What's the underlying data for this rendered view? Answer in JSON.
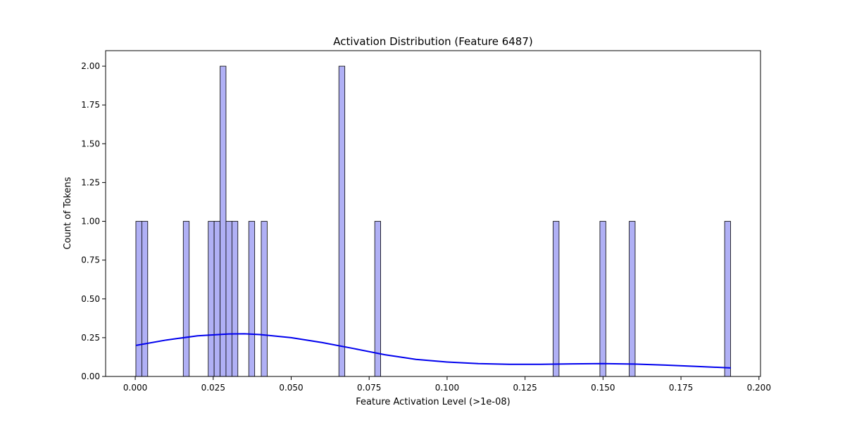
{
  "chart_data": {
    "type": "bar",
    "title": "Activation Distribution (Feature 6487)",
    "xlabel": "Feature Activation Level (>1e-08)",
    "ylabel": "Count of Tokens",
    "xlim": [
      -0.0095,
      0.2005
    ],
    "ylim": [
      0,
      2.1
    ],
    "bin_width": 0.0019,
    "xticks": [
      0.0,
      0.025,
      0.05,
      0.075,
      0.1,
      0.125,
      0.15,
      0.175,
      0.2
    ],
    "xtick_labels": [
      "0.000",
      "0.025",
      "0.050",
      "0.075",
      "0.100",
      "0.125",
      "0.150",
      "0.175",
      "0.200"
    ],
    "yticks": [
      0.0,
      0.25,
      0.5,
      0.75,
      1.0,
      1.25,
      1.5,
      1.75,
      2.0
    ],
    "ytick_labels": [
      "0.00",
      "0.25",
      "0.50",
      "0.75",
      "1.00",
      "1.25",
      "1.50",
      "1.75",
      "2.00"
    ],
    "bins": [
      {
        "x": 0.0002,
        "count": 1
      },
      {
        "x": 0.0021,
        "count": 1
      },
      {
        "x": 0.0154,
        "count": 1
      },
      {
        "x": 0.0234,
        "count": 1
      },
      {
        "x": 0.0253,
        "count": 1
      },
      {
        "x": 0.0272,
        "count": 2
      },
      {
        "x": 0.0291,
        "count": 1
      },
      {
        "x": 0.031,
        "count": 1
      },
      {
        "x": 0.0364,
        "count": 1
      },
      {
        "x": 0.0404,
        "count": 1
      },
      {
        "x": 0.0653,
        "count": 2
      },
      {
        "x": 0.0768,
        "count": 1
      },
      {
        "x": 0.134,
        "count": 1
      },
      {
        "x": 0.149,
        "count": 1
      },
      {
        "x": 0.1584,
        "count": 1
      },
      {
        "x": 0.189,
        "count": 1
      }
    ],
    "kde": {
      "x": [
        0.0002,
        0.01,
        0.02,
        0.03,
        0.035,
        0.04,
        0.05,
        0.06,
        0.07,
        0.08,
        0.09,
        0.1,
        0.11,
        0.12,
        0.13,
        0.14,
        0.15,
        0.16,
        0.17,
        0.18,
        0.191
      ],
      "y": [
        0.2,
        0.235,
        0.262,
        0.274,
        0.275,
        0.27,
        0.25,
        0.218,
        0.18,
        0.14,
        0.11,
        0.093,
        0.083,
        0.078,
        0.078,
        0.081,
        0.083,
        0.08,
        0.073,
        0.065,
        0.055
      ]
    },
    "bar_color": "#b0b0f5",
    "bar_edge": "#000000",
    "kde_color": "#0000ee",
    "grid": false,
    "legend": "none"
  }
}
